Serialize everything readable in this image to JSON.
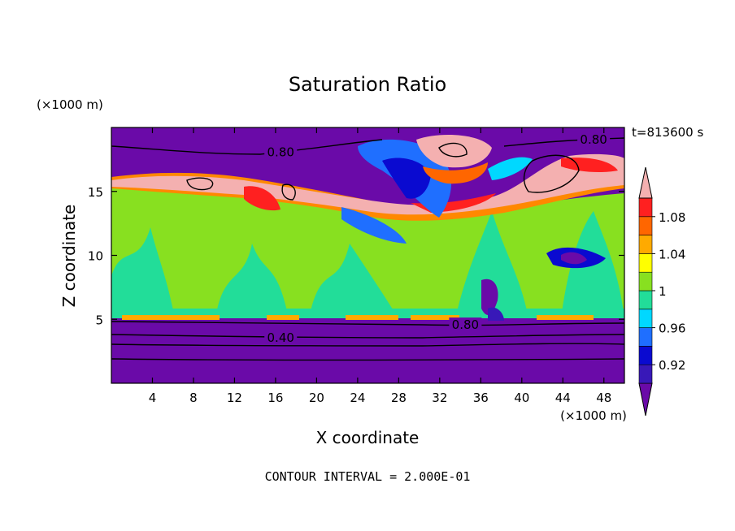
{
  "chart_data": {
    "type": "heatmap",
    "title": "Saturation Ratio",
    "xlabel": "X coordinate",
    "ylabel": "Z coordinate",
    "x_unit": "(×1000 m)",
    "y_unit": "(×1000 m)",
    "time_label": "t=813600 s",
    "footer": "CONTOUR INTERVAL = 2.000E-01",
    "xlim": [
      0,
      50
    ],
    "ylim": [
      0,
      20
    ],
    "x_ticks": [
      4,
      8,
      12,
      16,
      20,
      24,
      28,
      32,
      36,
      40,
      44,
      48
    ],
    "y_ticks": [
      5,
      10,
      15
    ],
    "colorbar": {
      "levels": [
        0.9,
        0.92,
        0.94,
        0.96,
        0.98,
        1.0,
        1.02,
        1.04,
        1.06,
        1.08,
        1.1
      ],
      "tick_labels": [
        "0.92",
        "0.96",
        "1",
        "1.04",
        "1.08"
      ],
      "colors": [
        "#6a0aa8",
        "#3818b8",
        "#0a0ad0",
        "#1f6fff",
        "#00d8ff",
        "#22dd99",
        "#88e020",
        "#ffff00",
        "#ffaa00",
        "#ff6600",
        "#ff2020",
        "#f4b0b0"
      ]
    },
    "contour_labels": [
      {
        "text": "0.80",
        "x": 16.5,
        "z": 18.0
      },
      {
        "text": "0.80",
        "x": 47.0,
        "z": 19.0
      },
      {
        "text": "0.80",
        "x": 34.5,
        "z": 4.5
      },
      {
        "text": "0.40",
        "x": 16.5,
        "z": 3.5
      }
    ]
  }
}
